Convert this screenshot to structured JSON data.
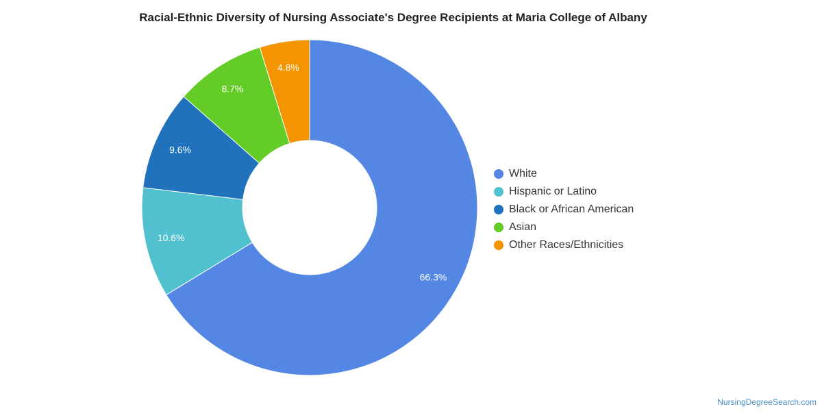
{
  "chart_data": {
    "type": "pie",
    "title": "Racial-Ethnic Diversity of Nursing Associate's Degree Recipients at Maria College of Albany",
    "legend_position": "right",
    "donut": true,
    "series": [
      {
        "name": "White",
        "value": 66.3,
        "label": "66.3%",
        "color": "#5486e3"
      },
      {
        "name": "Hispanic or Latino",
        "value": 10.6,
        "label": "10.6%",
        "color": "#51c0cf"
      },
      {
        "name": "Black or African American",
        "value": 9.6,
        "label": "9.6%",
        "color": "#1f72bb"
      },
      {
        "name": "Asian",
        "value": 8.7,
        "label": "8.7%",
        "color": "#64cc26"
      },
      {
        "name": "Other Races/Ethnicities",
        "value": 4.8,
        "label": "4.8%",
        "color": "#f59402"
      }
    ]
  },
  "watermark": "NursingDegreeSearch.com"
}
